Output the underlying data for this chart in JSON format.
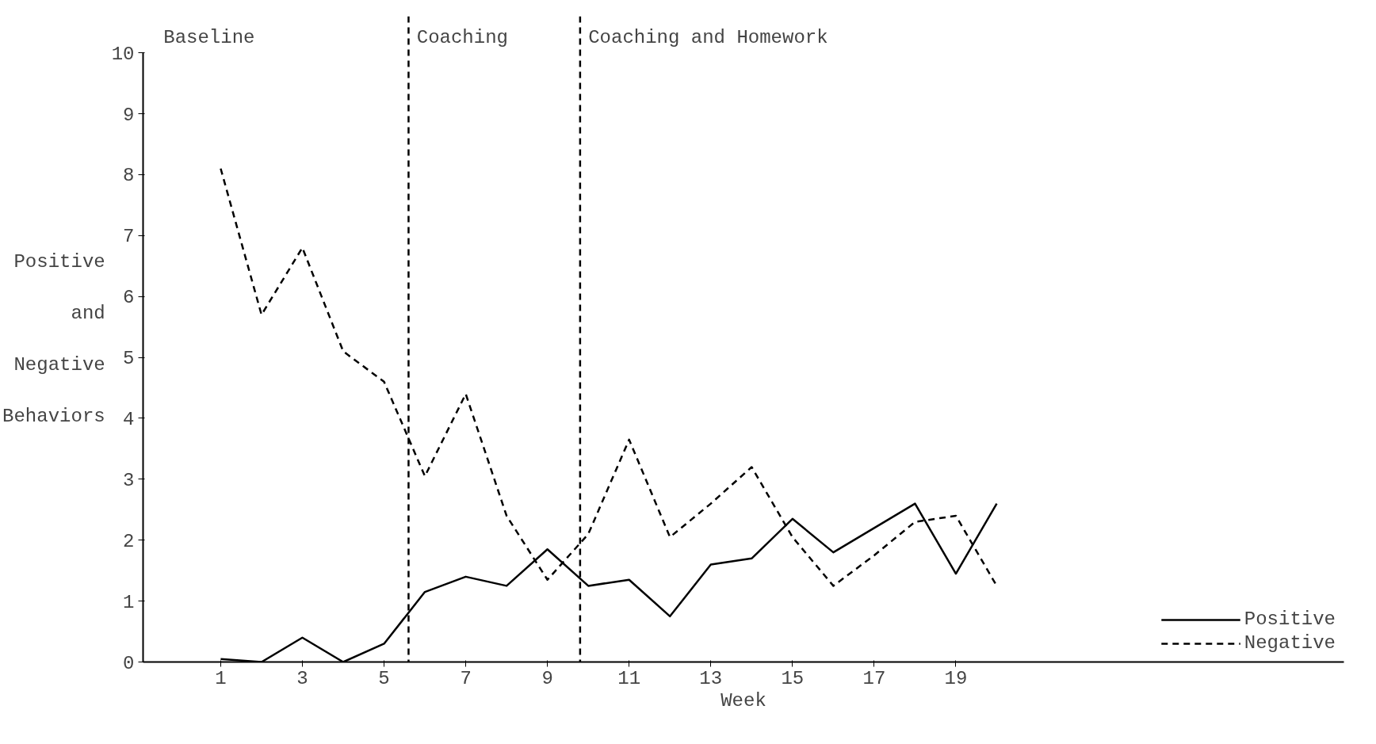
{
  "chart_data": {
    "type": "line",
    "xlabel": "Week",
    "ylabel": "Positive and Negative Behaviors",
    "x": [
      1,
      2,
      3,
      4,
      5,
      6,
      7,
      8,
      9,
      10,
      11,
      12,
      13,
      14,
      15,
      16,
      17,
      18,
      19,
      20
    ],
    "series": [
      {
        "name": "Positive",
        "color": "#000000",
        "line_style": "solid",
        "values": [
          0.05,
          0,
          0.4,
          0,
          0.3,
          1.15,
          1.4,
          1.25,
          1.85,
          1.25,
          1.35,
          0.75,
          1.6,
          1.7,
          2.35,
          1.8,
          2.2,
          2.6,
          1.45,
          2.6
        ]
      },
      {
        "name": "Negative",
        "color": "#000000",
        "line_style": "dashed",
        "values": [
          8.1,
          5.7,
          6.8,
          5.1,
          4.6,
          3.05,
          4.4,
          2.4,
          1.35,
          2.1,
          3.65,
          2.05,
          2.6,
          3.2,
          2.05,
          1.25,
          1.75,
          2.3,
          2.4,
          1.25
        ]
      }
    ],
    "xlim": [
      -0.9,
      28.5
    ],
    "ylim": [
      0,
      10
    ],
    "xticks": [
      1,
      3,
      5,
      7,
      9,
      11,
      13,
      15,
      17,
      19
    ],
    "yticks": [
      0,
      1,
      2,
      3,
      4,
      5,
      6,
      7,
      8,
      9,
      10
    ],
    "ref_lines": [
      {
        "axis": "x",
        "value": 5.6,
        "line_style": "dashed"
      },
      {
        "axis": "x",
        "value": 9.8,
        "line_style": "dashed"
      }
    ],
    "annotations": [
      "Baseline",
      "Coaching",
      "Coaching and Homework"
    ],
    "legend": "bottom right",
    "grid": false,
    "marker": "none"
  }
}
